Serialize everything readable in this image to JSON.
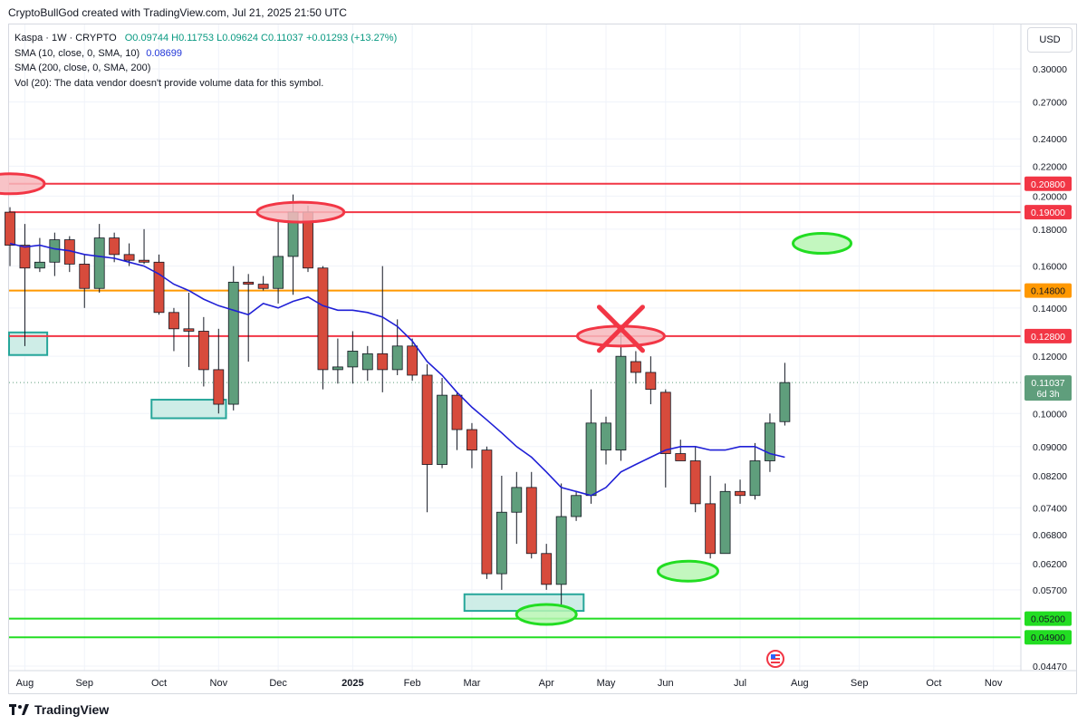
{
  "header": "CryptoBullGod created with TradingView.com, Jul 21, 2025 21:50 UTC",
  "legend": {
    "symbol": "Kaspa · 1W · CRYPTO",
    "ohlc": "O0.09744 H0.11753 L0.09624 C0.11037 +0.01293 (+13.27%)",
    "sma10_label": "SMA (10, close, 0, SMA, 10)",
    "sma10_value": "0.08699",
    "sma200_label": "SMA (200, close, 0, SMA, 200)",
    "vol_note": "Vol (20): The data vendor doesn't provide volume data for this symbol."
  },
  "currency_button": "USD",
  "brand": "TradingView",
  "colors": {
    "up": "#5f9e7c",
    "down": "#d74b3c",
    "sma": "#1f1fd6",
    "resistance": "#f23645",
    "orange": "#ff9800",
    "support": "#22dd22",
    "zone": "#c9ebe4"
  },
  "chart_data": {
    "type": "candlestick",
    "title": "Kaspa · 1W · CRYPTO",
    "y_scale": "log",
    "ylim": [
      0.0447,
      0.33
    ],
    "y_ticks": [
      0.3,
      0.27,
      0.24,
      0.22,
      0.2,
      0.18,
      0.16,
      0.14,
      0.128,
      0.12,
      0.1,
      0.09,
      0.082,
      0.074,
      0.068,
      0.062,
      0.057,
      0.0447
    ],
    "y_tick_labels": [
      "0.30000",
      "0.27000",
      "0.24000",
      "0.22000",
      "0.20000",
      "0.18000",
      "0.16000",
      "0.14000",
      "0.12800",
      "0.12000",
      "0.10000",
      "0.09000",
      "0.08200",
      "0.07400",
      "0.06800",
      "0.06200",
      "0.05700",
      "0.04470"
    ],
    "x_tick_labels": [
      {
        "label": "Aug",
        "week": 1
      },
      {
        "label": "Sep",
        "week": 5
      },
      {
        "label": "Oct",
        "week": 10
      },
      {
        "label": "Nov",
        "week": 14
      },
      {
        "label": "Dec",
        "week": 18
      },
      {
        "label": "2025",
        "week": 23
      },
      {
        "label": "Feb",
        "week": 27
      },
      {
        "label": "Mar",
        "week": 31
      },
      {
        "label": "Apr",
        "week": 36
      },
      {
        "label": "May",
        "week": 40
      },
      {
        "label": "Jun",
        "week": 44
      },
      {
        "label": "Jul",
        "week": 49
      },
      {
        "label": "Aug",
        "week": 53
      },
      {
        "label": "Sep",
        "week": 57
      },
      {
        "label": "Oct",
        "week": 62
      },
      {
        "label": "Nov",
        "week": 66
      }
    ],
    "candles": [
      {
        "o": 0.19,
        "h": 0.193,
        "l": 0.16,
        "c": 0.171
      },
      {
        "o": 0.171,
        "h": 0.183,
        "l": 0.124,
        "c": 0.159
      },
      {
        "o": 0.159,
        "h": 0.175,
        "l": 0.157,
        "c": 0.162
      },
      {
        "o": 0.162,
        "h": 0.178,
        "l": 0.155,
        "c": 0.174
      },
      {
        "o": 0.174,
        "h": 0.176,
        "l": 0.157,
        "c": 0.161
      },
      {
        "o": 0.161,
        "h": 0.166,
        "l": 0.14,
        "c": 0.149
      },
      {
        "o": 0.149,
        "h": 0.183,
        "l": 0.147,
        "c": 0.175
      },
      {
        "o": 0.175,
        "h": 0.178,
        "l": 0.162,
        "c": 0.166
      },
      {
        "o": 0.166,
        "h": 0.172,
        "l": 0.16,
        "c": 0.163
      },
      {
        "o": 0.163,
        "h": 0.18,
        "l": 0.161,
        "c": 0.162
      },
      {
        "o": 0.162,
        "h": 0.166,
        "l": 0.137,
        "c": 0.138
      },
      {
        "o": 0.138,
        "h": 0.14,
        "l": 0.122,
        "c": 0.131
      },
      {
        "o": 0.131,
        "h": 0.147,
        "l": 0.116,
        "c": 0.13
      },
      {
        "o": 0.13,
        "h": 0.136,
        "l": 0.109,
        "c": 0.115
      },
      {
        "o": 0.115,
        "h": 0.131,
        "l": 0.1,
        "c": 0.103
      },
      {
        "o": 0.103,
        "h": 0.16,
        "l": 0.101,
        "c": 0.152
      },
      {
        "o": 0.152,
        "h": 0.156,
        "l": 0.118,
        "c": 0.151
      },
      {
        "o": 0.151,
        "h": 0.155,
        "l": 0.148,
        "c": 0.149
      },
      {
        "o": 0.149,
        "h": 0.185,
        "l": 0.142,
        "c": 0.165
      },
      {
        "o": 0.165,
        "h": 0.201,
        "l": 0.146,
        "c": 0.19
      },
      {
        "o": 0.19,
        "h": 0.194,
        "l": 0.157,
        "c": 0.159
      },
      {
        "o": 0.159,
        "h": 0.16,
        "l": 0.108,
        "c": 0.115
      },
      {
        "o": 0.115,
        "h": 0.127,
        "l": 0.11,
        "c": 0.116
      },
      {
        "o": 0.116,
        "h": 0.13,
        "l": 0.11,
        "c": 0.122
      },
      {
        "o": 0.115,
        "h": 0.124,
        "l": 0.111,
        "c": 0.121
      },
      {
        "o": 0.121,
        "h": 0.16,
        "l": 0.107,
        "c": 0.115
      },
      {
        "o": 0.115,
        "h": 0.135,
        "l": 0.113,
        "c": 0.124
      },
      {
        "o": 0.124,
        "h": 0.127,
        "l": 0.111,
        "c": 0.113
      },
      {
        "o": 0.113,
        "h": 0.117,
        "l": 0.073,
        "c": 0.085
      },
      {
        "o": 0.085,
        "h": 0.112,
        "l": 0.084,
        "c": 0.106
      },
      {
        "o": 0.106,
        "h": 0.107,
        "l": 0.089,
        "c": 0.095
      },
      {
        "o": 0.095,
        "h": 0.097,
        "l": 0.084,
        "c": 0.089
      },
      {
        "o": 0.089,
        "h": 0.09,
        "l": 0.059,
        "c": 0.06
      },
      {
        "o": 0.06,
        "h": 0.082,
        "l": 0.057,
        "c": 0.073
      },
      {
        "o": 0.073,
        "h": 0.083,
        "l": 0.066,
        "c": 0.079
      },
      {
        "o": 0.079,
        "h": 0.083,
        "l": 0.063,
        "c": 0.064
      },
      {
        "o": 0.064,
        "h": 0.066,
        "l": 0.057,
        "c": 0.058
      },
      {
        "o": 0.058,
        "h": 0.08,
        "l": 0.054,
        "c": 0.072
      },
      {
        "o": 0.072,
        "h": 0.078,
        "l": 0.071,
        "c": 0.077
      },
      {
        "o": 0.077,
        "h": 0.108,
        "l": 0.075,
        "c": 0.097
      },
      {
        "o": 0.089,
        "h": 0.099,
        "l": 0.085,
        "c": 0.097
      },
      {
        "o": 0.089,
        "h": 0.131,
        "l": 0.086,
        "c": 0.12
      },
      {
        "o": 0.118,
        "h": 0.122,
        "l": 0.11,
        "c": 0.114
      },
      {
        "o": 0.114,
        "h": 0.12,
        "l": 0.103,
        "c": 0.108
      },
      {
        "o": 0.107,
        "h": 0.108,
        "l": 0.079,
        "c": 0.088
      },
      {
        "o": 0.088,
        "h": 0.092,
        "l": 0.086,
        "c": 0.086
      },
      {
        "o": 0.086,
        "h": 0.09,
        "l": 0.073,
        "c": 0.075
      },
      {
        "o": 0.075,
        "h": 0.082,
        "l": 0.063,
        "c": 0.064
      },
      {
        "o": 0.064,
        "h": 0.08,
        "l": 0.064,
        "c": 0.078
      },
      {
        "o": 0.078,
        "h": 0.081,
        "l": 0.075,
        "c": 0.077
      },
      {
        "o": 0.077,
        "h": 0.091,
        "l": 0.076,
        "c": 0.086
      },
      {
        "o": 0.086,
        "h": 0.1,
        "l": 0.083,
        "c": 0.097
      },
      {
        "o": 0.09744,
        "h": 0.11753,
        "l": 0.09624,
        "c": 0.11037
      }
    ],
    "sma10": [
      0.172,
      0.17,
      0.171,
      0.169,
      0.168,
      0.166,
      0.165,
      0.164,
      0.162,
      0.16,
      0.156,
      0.151,
      0.148,
      0.144,
      0.141,
      0.139,
      0.137,
      0.142,
      0.14,
      0.143,
      0.145,
      0.141,
      0.139,
      0.139,
      0.138,
      0.136,
      0.132,
      0.126,
      0.118,
      0.113,
      0.107,
      0.102,
      0.098,
      0.094,
      0.09,
      0.087,
      0.083,
      0.079,
      0.078,
      0.077,
      0.079,
      0.083,
      0.085,
      0.087,
      0.089,
      0.09,
      0.09,
      0.089,
      0.089,
      0.09,
      0.09,
      0.088,
      0.087
    ],
    "horizontal_lines": [
      {
        "value": 0.208,
        "label": "0.20800",
        "color": "resistance"
      },
      {
        "value": 0.19,
        "label": "0.19000",
        "color": "resistance"
      },
      {
        "value": 0.148,
        "label": "0.14800",
        "color": "orange"
      },
      {
        "value": 0.128,
        "label": "0.12800",
        "color": "resistance"
      },
      {
        "value": 0.052,
        "label": "0.05200",
        "color": "support"
      },
      {
        "value": 0.049,
        "label": "0.04900",
        "color": "support"
      }
    ],
    "last_price": {
      "value": 0.11037,
      "label": "0.11037",
      "countdown": "6d 3h"
    },
    "annotations": [
      {
        "kind": "ellipse",
        "color": "resistance",
        "week": 0,
        "price": 0.208
      },
      {
        "kind": "ellipse",
        "color": "resistance",
        "week": 19.5,
        "price": 0.19
      },
      {
        "kind": "ellipse",
        "color": "resistance",
        "week": 41,
        "price": 0.128
      },
      {
        "kind": "cross",
        "color": "resistance",
        "week": 41,
        "price": 0.131
      },
      {
        "kind": "ellipse",
        "color": "support",
        "week": 54.5,
        "price": 0.172
      },
      {
        "kind": "ellipse",
        "color": "support",
        "week": 45.5,
        "price": 0.0605
      },
      {
        "kind": "ellipse",
        "color": "support",
        "week": 36,
        "price": 0.0527
      },
      {
        "kind": "box",
        "color": "zone",
        "week_from": -0.5,
        "week_to": 2.5,
        "price_from": 0.1205,
        "price_to": 0.1295
      },
      {
        "kind": "box",
        "color": "zone",
        "week_from": 9.5,
        "week_to": 14.5,
        "price_from": 0.0985,
        "price_to": 0.1045
      },
      {
        "kind": "box",
        "color": "zone",
        "week_from": 30.5,
        "week_to": 38.5,
        "price_from": 0.0533,
        "price_to": 0.0562
      }
    ]
  }
}
